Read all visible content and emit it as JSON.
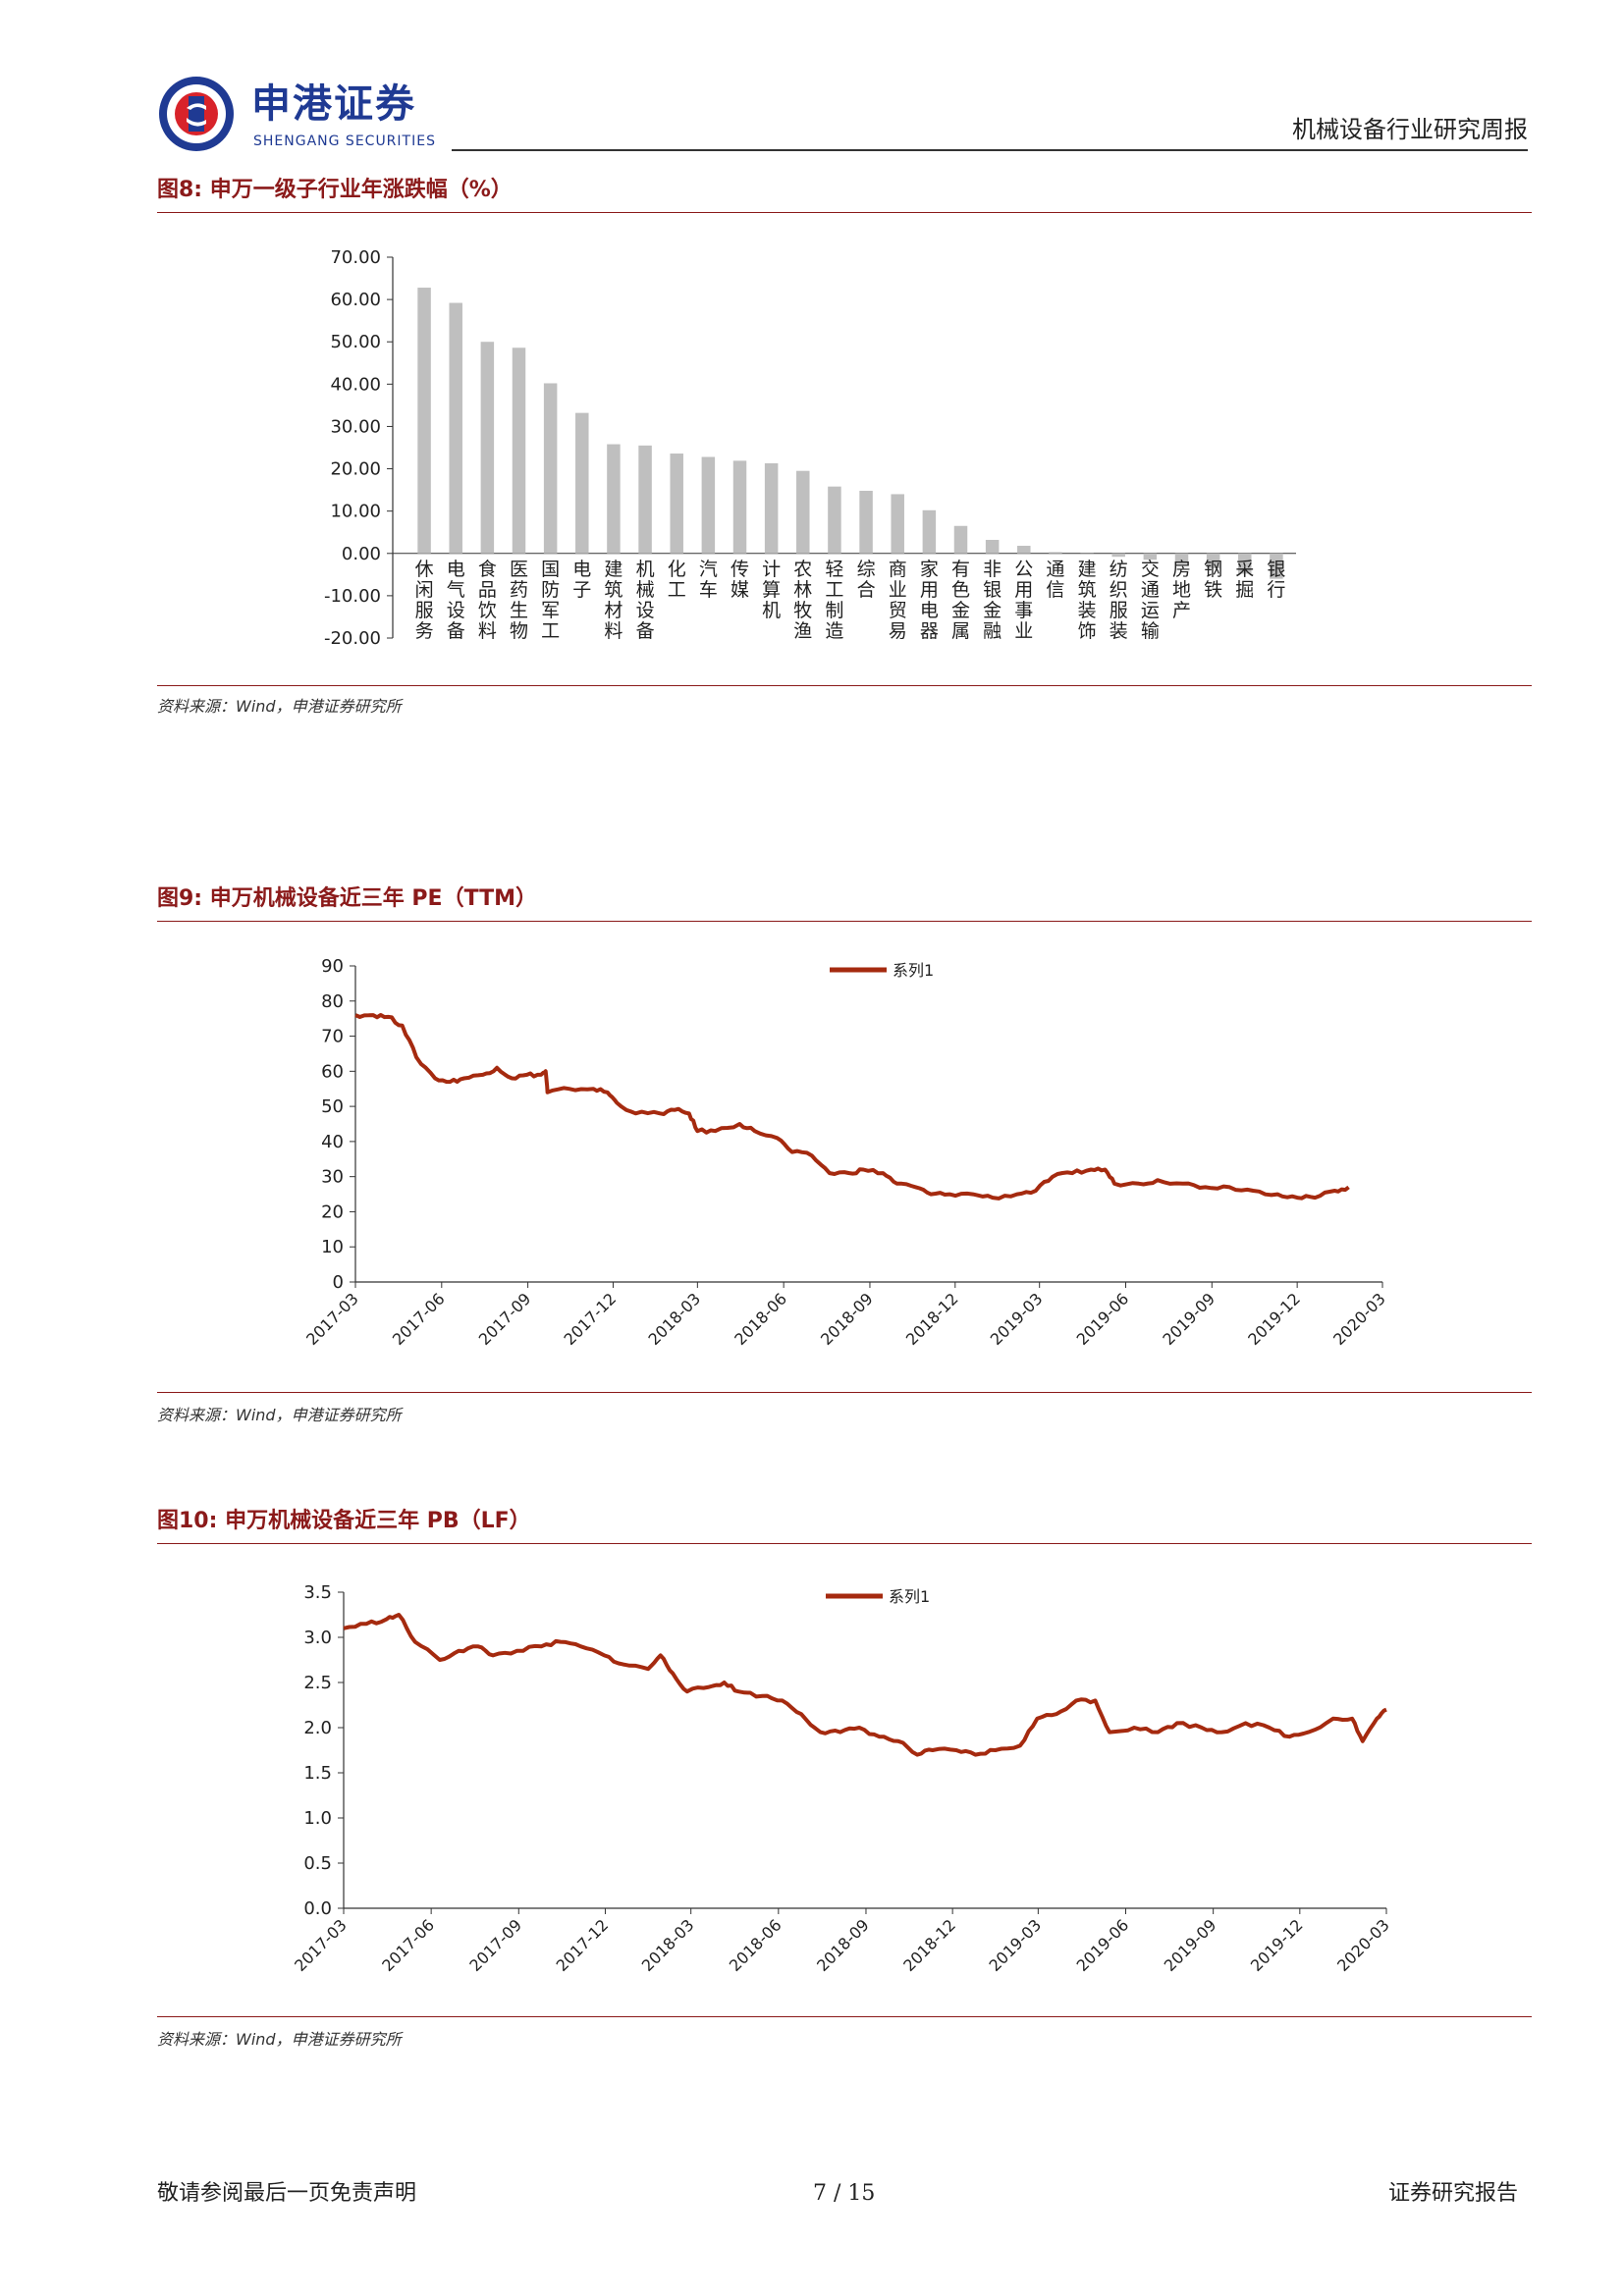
{
  "header": {
    "brand_cn": "申港证券",
    "brand_en": "SHENGANG SECURITIES",
    "report_title": "机械设备行业研究周报",
    "logo_icon": "shengang-logo-icon",
    "brand_color": "#1f3a93",
    "logo_red": "#d8232a"
  },
  "figures": {
    "fig8": {
      "title": "图8:  申万一级子行业年涨跌幅（%）",
      "source": "资料来源：Wind，申港证券研究所"
    },
    "fig9": {
      "title": "图9:  申万机械设备近三年 PE（TTM）",
      "source": "资料来源：Wind，申港证券研究所"
    },
    "fig10": {
      "title": "图10:  申万机械设备近三年 PB（LF）",
      "source": "资料来源：Wind，申港证券研究所"
    }
  },
  "footer": {
    "left": "敬请参阅最后一页免责声明",
    "page": "7 / 15",
    "right": "证券研究报告"
  },
  "chart_data": [
    {
      "type": "bar",
      "title": "",
      "categories": [
        "休闲服务",
        "电气设备",
        "食品饮料",
        "医药生物",
        "国防军工",
        "电子",
        "建筑材料",
        "机械设备",
        "化工",
        "汽车",
        "传媒",
        "计算机",
        "农林牧渔",
        "轻工制造",
        "综合",
        "商业贸易",
        "家用电器",
        "有色金属",
        "非银金融",
        "公用事业",
        "通信",
        "建筑装饰",
        "纺织服装",
        "交通运输",
        "房地产",
        "钢铁",
        "采掘",
        "银行"
      ],
      "values": [
        62.8,
        59.2,
        50.0,
        48.6,
        40.2,
        33.2,
        25.8,
        25.5,
        23.6,
        22.8,
        21.9,
        21.3,
        19.5,
        15.8,
        14.8,
        14.0,
        10.2,
        6.5,
        3.2,
        1.8,
        0.3,
        -0.2,
        -0.8,
        -1.5,
        -2.5,
        -3.5,
        -4.8,
        -6.0
      ],
      "ylim": [
        -20,
        70
      ],
      "yticks": [
        "70.00",
        "60.00",
        "50.00",
        "40.00",
        "30.00",
        "20.00",
        "10.00",
        "0.00",
        "-10.00",
        "-20.00"
      ],
      "bar_color": "#bfbfbf",
      "grid": false
    },
    {
      "type": "line",
      "title": "",
      "series": [
        {
          "name": "系列1",
          "color": "#a52a0f"
        }
      ],
      "x_ticks": [
        "2017-03",
        "2017-06",
        "2017-09",
        "2017-12",
        "2018-03",
        "2018-06",
        "2018-09",
        "2018-12",
        "2019-03",
        "2019-06",
        "2019-09",
        "2019-12",
        "2020-03"
      ],
      "y_ticks": [
        "90",
        "80",
        "70",
        "60",
        "50",
        "40",
        "30",
        "20",
        "10",
        "0"
      ],
      "ylim": [
        0,
        90
      ],
      "x_range": [
        "2017-03-01",
        "2020-03-01"
      ],
      "points": [
        [
          "2017-03-01",
          76
        ],
        [
          "2017-03-20",
          76
        ],
        [
          "2017-04-05",
          75.5
        ],
        [
          "2017-04-20",
          73
        ],
        [
          "2017-05-05",
          64
        ],
        [
          "2017-05-25",
          58
        ],
        [
          "2017-06-10",
          57
        ],
        [
          "2017-06-25",
          58
        ],
        [
          "2017-07-15",
          59
        ],
        [
          "2017-07-30",
          61
        ],
        [
          "2017-08-15",
          58
        ],
        [
          "2017-08-31",
          59
        ],
        [
          "2017-09-15",
          59
        ],
        [
          "2017-09-20",
          60
        ],
        [
          "2017-09-22",
          54
        ],
        [
          "2017-10-15",
          55
        ],
        [
          "2017-11-10",
          55
        ],
        [
          "2017-11-25",
          54
        ],
        [
          "2017-12-05",
          51
        ],
        [
          "2017-12-25",
          48
        ],
        [
          "2018-01-20",
          48
        ],
        [
          "2018-02-05",
          49
        ],
        [
          "2018-02-20",
          48
        ],
        [
          "2018-03-01",
          43
        ],
        [
          "2018-03-20",
          43
        ],
        [
          "2018-04-15",
          45
        ],
        [
          "2018-05-01",
          43
        ],
        [
          "2018-05-25",
          41
        ],
        [
          "2018-06-10",
          37
        ],
        [
          "2018-07-01",
          36
        ],
        [
          "2018-07-20",
          31
        ],
        [
          "2018-08-10",
          31
        ],
        [
          "2018-08-25",
          32
        ],
        [
          "2018-09-15",
          31
        ],
        [
          "2018-09-30",
          28
        ],
        [
          "2018-10-20",
          27
        ],
        [
          "2018-11-05",
          25
        ],
        [
          "2018-11-25",
          25
        ],
        [
          "2018-12-20",
          25
        ],
        [
          "2019-01-10",
          24
        ],
        [
          "2019-02-05",
          25
        ],
        [
          "2019-02-25",
          26
        ],
        [
          "2019-03-15",
          30
        ],
        [
          "2019-04-05",
          31
        ],
        [
          "2019-04-25",
          32
        ],
        [
          "2019-05-10",
          32
        ],
        [
          "2019-05-20",
          28
        ],
        [
          "2019-06-15",
          28
        ],
        [
          "2019-07-05",
          29
        ],
        [
          "2019-08-01",
          28
        ],
        [
          "2019-08-25",
          27
        ],
        [
          "2019-09-20",
          27
        ],
        [
          "2019-10-15",
          26
        ],
        [
          "2019-11-10",
          25
        ],
        [
          "2019-12-01",
          24
        ],
        [
          "2019-12-20",
          24
        ],
        [
          "2020-01-10",
          26
        ],
        [
          "2020-01-25",
          27
        ]
      ]
    },
    {
      "type": "line",
      "title": "",
      "series": [
        {
          "name": "系列1",
          "color": "#a52a0f"
        }
      ],
      "x_ticks": [
        "2017-03",
        "2017-06",
        "2017-09",
        "2017-12",
        "2018-03",
        "2018-06",
        "2018-09",
        "2018-12",
        "2019-03",
        "2019-06",
        "2019-09",
        "2019-12",
        "2020-03"
      ],
      "y_ticks": [
        "3.5",
        "3.0",
        "2.5",
        "2.0",
        "1.5",
        "1.0",
        "0.5",
        "0.0"
      ],
      "ylim": [
        0,
        3.5
      ],
      "x_range": [
        "2017-03-01",
        "2020-03-01"
      ],
      "points": [
        [
          "2017-03-01",
          3.1
        ],
        [
          "2017-03-25",
          3.15
        ],
        [
          "2017-04-15",
          3.2
        ],
        [
          "2017-04-28",
          3.25
        ],
        [
          "2017-05-15",
          2.95
        ],
        [
          "2017-06-10",
          2.75
        ],
        [
          "2017-06-30",
          2.85
        ],
        [
          "2017-07-20",
          2.9
        ],
        [
          "2017-08-05",
          2.8
        ],
        [
          "2017-08-30",
          2.85
        ],
        [
          "2017-09-25",
          2.9
        ],
        [
          "2017-10-15",
          2.95
        ],
        [
          "2017-11-05",
          2.9
        ],
        [
          "2017-11-30",
          2.8
        ],
        [
          "2017-12-20",
          2.7
        ],
        [
          "2018-01-15",
          2.65
        ],
        [
          "2018-01-28",
          2.8
        ],
        [
          "2018-02-10",
          2.6
        ],
        [
          "2018-02-25",
          2.4
        ],
        [
          "2018-03-20",
          2.45
        ],
        [
          "2018-04-05",
          2.5
        ],
        [
          "2018-04-20",
          2.4
        ],
        [
          "2018-05-15",
          2.35
        ],
        [
          "2018-06-05",
          2.3
        ],
        [
          "2018-06-25",
          2.15
        ],
        [
          "2018-07-15",
          1.95
        ],
        [
          "2018-08-05",
          1.95
        ],
        [
          "2018-08-25",
          2.0
        ],
        [
          "2018-09-15",
          1.9
        ],
        [
          "2018-10-05",
          1.85
        ],
        [
          "2018-10-25",
          1.7
        ],
        [
          "2018-11-10",
          1.75
        ],
        [
          "2018-12-05",
          1.75
        ],
        [
          "2018-12-25",
          1.7
        ],
        [
          "2019-01-15",
          1.75
        ],
        [
          "2019-02-10",
          1.8
        ],
        [
          "2019-02-28",
          2.1
        ],
        [
          "2019-03-20",
          2.15
        ],
        [
          "2019-04-10",
          2.3
        ],
        [
          "2019-04-30",
          2.3
        ],
        [
          "2019-05-15",
          1.95
        ],
        [
          "2019-06-10",
          2.0
        ],
        [
          "2019-07-05",
          1.95
        ],
        [
          "2019-07-25",
          2.05
        ],
        [
          "2019-08-20",
          2.0
        ],
        [
          "2019-09-10",
          1.95
        ],
        [
          "2019-10-05",
          2.05
        ],
        [
          "2019-10-30",
          2.0
        ],
        [
          "2019-11-20",
          1.9
        ],
        [
          "2019-12-10",
          1.95
        ],
        [
          "2020-01-05",
          2.1
        ],
        [
          "2020-01-25",
          2.1
        ],
        [
          "2020-02-05",
          1.85
        ],
        [
          "2020-02-20",
          2.1
        ],
        [
          "2020-03-01",
          2.2
        ]
      ]
    }
  ]
}
